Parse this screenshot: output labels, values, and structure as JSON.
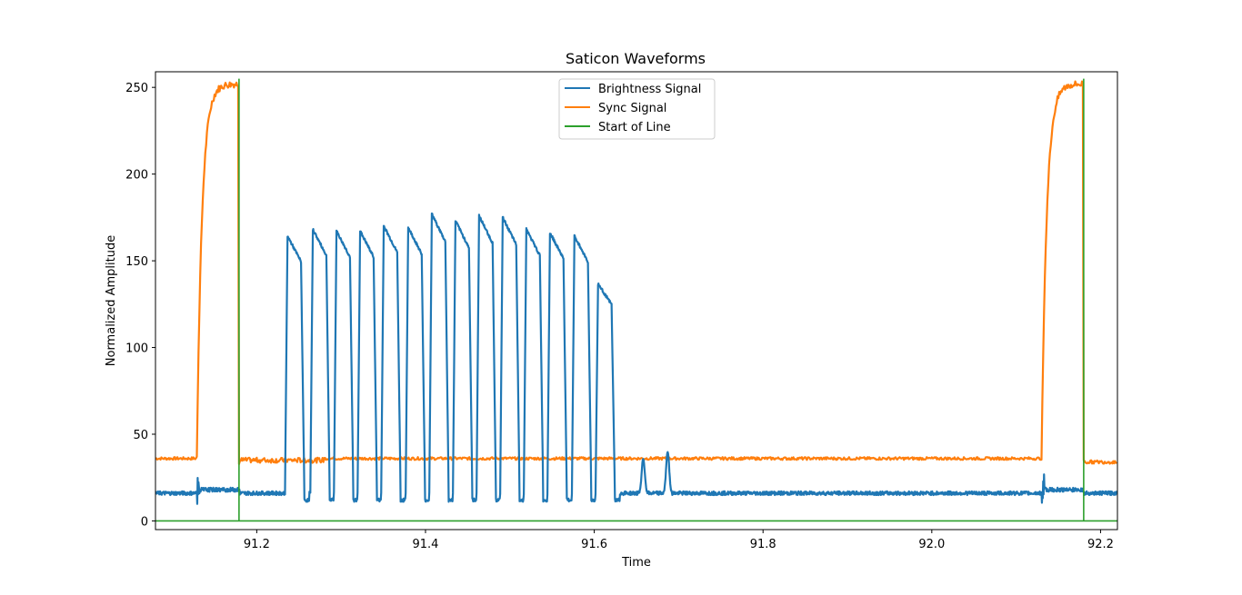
{
  "chart_data": {
    "type": "line",
    "title": "Saticon Waveforms",
    "xlabel": "Time",
    "ylabel": "Normalized Amplitude",
    "xlim": [
      91.08,
      92.22
    ],
    "ylim": [
      -5,
      259
    ],
    "xticks": [
      "91.2",
      "91.4",
      "91.6",
      "91.8",
      "92.0",
      "92.2"
    ],
    "yticks": [
      "0",
      "50",
      "100",
      "150",
      "200",
      "250"
    ],
    "grid": false,
    "legend_position": "top-center",
    "series": [
      {
        "name": "Brightness Signal",
        "color": "#1f77b4",
        "baseline": 16,
        "burst_x": [
          91.13,
          91.675
        ],
        "pulses": [
          {
            "x": 91.245,
            "peak": 167
          },
          {
            "x": 91.275,
            "peak": 171
          },
          {
            "x": 91.303,
            "peak": 170
          },
          {
            "x": 91.331,
            "peak": 170
          },
          {
            "x": 91.359,
            "peak": 173
          },
          {
            "x": 91.388,
            "peak": 172
          },
          {
            "x": 91.416,
            "peak": 180
          },
          {
            "x": 91.444,
            "peak": 176
          },
          {
            "x": 91.472,
            "peak": 179
          },
          {
            "x": 91.5,
            "peak": 178
          },
          {
            "x": 91.528,
            "peak": 171
          },
          {
            "x": 91.556,
            "peak": 169
          },
          {
            "x": 91.585,
            "peak": 167
          },
          {
            "x": 91.613,
            "peak": 139
          },
          {
            "x": 91.658,
            "peak": 36
          },
          {
            "x": 91.687,
            "peak": 40
          }
        ]
      },
      {
        "name": "Sync Signal",
        "color": "#ff7f0e",
        "baseline": 36,
        "pulses": [
          {
            "start": 91.129,
            "end": 91.179,
            "peak": 252
          },
          {
            "start": 92.13,
            "end": 92.18,
            "peak": 252
          }
        ]
      },
      {
        "name": "Start of Line",
        "color": "#2ca02c",
        "baseline": 0,
        "spikes_x": [
          91.179,
          92.18
        ],
        "spike_height": 255
      }
    ]
  }
}
